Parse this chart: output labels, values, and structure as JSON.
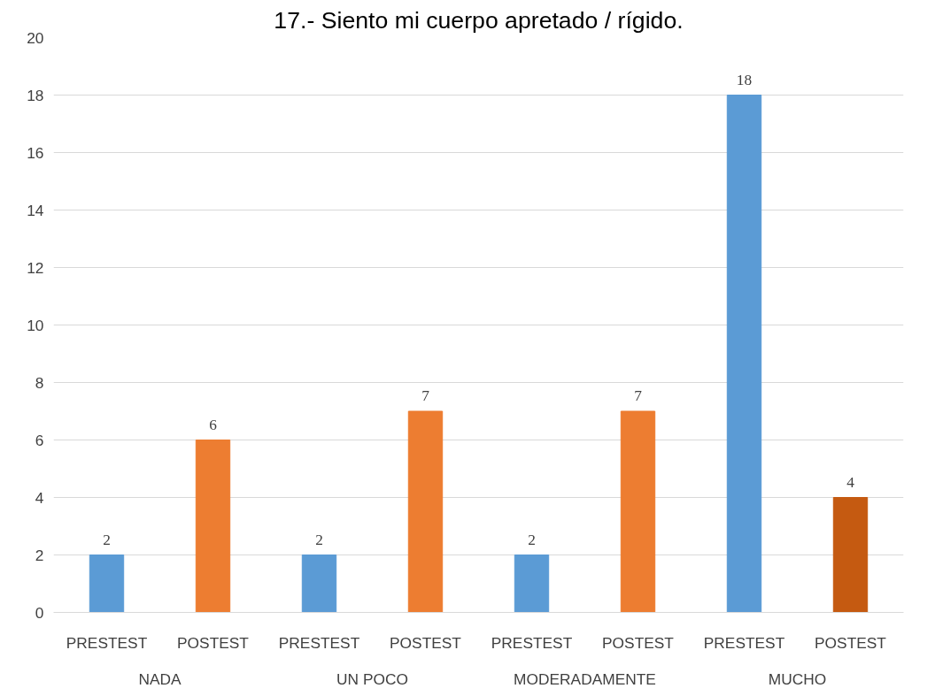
{
  "chart_data": {
    "type": "bar",
    "title": "17.- Siento mi cuerpo apretado / rígido.",
    "categories": [
      "NADA",
      "UN POCO",
      "MODERADAMENTE",
      "MUCHO"
    ],
    "series": [
      {
        "name": "PRESTEST",
        "color": "#5b9bd5",
        "values": [
          2,
          2,
          2,
          18
        ]
      },
      {
        "name": "POSTEST",
        "colors": [
          "#ed7d31",
          "#ed7d31",
          "#ed7d31",
          "#c55a11"
        ],
        "values": [
          6,
          7,
          7,
          4
        ]
      }
    ],
    "ylim": [
      0,
      20
    ],
    "yticks": [
      0,
      2,
      4,
      6,
      8,
      10,
      12,
      14,
      16,
      18,
      20
    ],
    "grid": "y",
    "data_labels": true
  }
}
